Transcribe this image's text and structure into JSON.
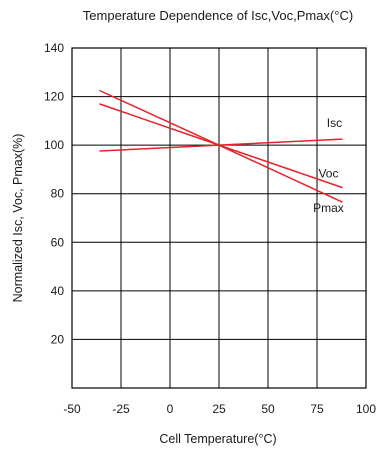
{
  "chart_data": {
    "type": "line",
    "title": "Temperature Dependence of Isc,Voc,Pmax(°C)",
    "xlabel": "Cell Temperature(°C)",
    "ylabel": "Normalized Isc, Voc, Pmax(%)",
    "xlim": [
      -50,
      100
    ],
    "ylim": [
      0,
      140
    ],
    "x_ticks": [
      "-50",
      "-25",
      "0",
      "25",
      "50",
      "75",
      "100"
    ],
    "y_ticks": [
      "20",
      "40",
      "60",
      "80",
      "100",
      "120",
      "140"
    ],
    "grid": true,
    "line_color": "#e8222a",
    "series": [
      {
        "name": "Isc",
        "x": [
          -36,
          25,
          88
        ],
        "y": [
          97.6,
          100,
          102.5
        ]
      },
      {
        "name": "Voc",
        "x": [
          -36,
          25,
          88
        ],
        "y": [
          117,
          100,
          82.5
        ]
      },
      {
        "name": "Pmax",
        "x": [
          -36,
          25,
          88
        ],
        "y": [
          122.5,
          100,
          76.5
        ]
      }
    ]
  }
}
